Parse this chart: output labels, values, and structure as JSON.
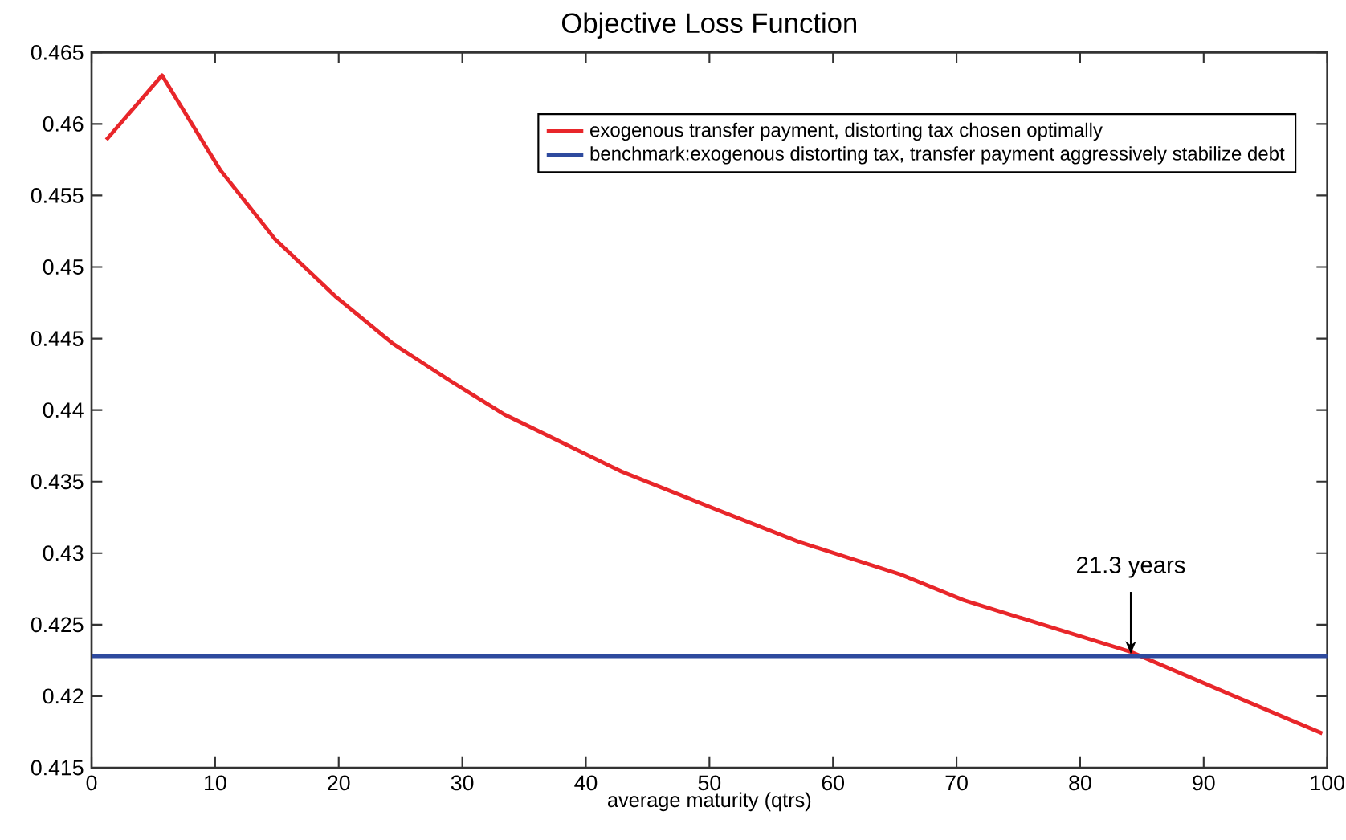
{
  "chart_data": {
    "type": "line",
    "title": "Objective Loss Function",
    "xlabel": "average maturity (qtrs)",
    "xlim": [
      0,
      100
    ],
    "xticks": [
      0,
      10,
      20,
      30,
      40,
      50,
      60,
      70,
      80,
      90,
      100
    ],
    "ylim": [
      0.415,
      0.465
    ],
    "yticks": [
      0.415,
      0.42,
      0.425,
      0.43,
      0.435,
      0.44,
      0.445,
      0.45,
      0.455,
      0.46,
      0.465
    ],
    "legend": "top right",
    "grid": false,
    "series": [
      {
        "name": "exogenous transfer payment, distorting tax chosen optimally",
        "color": "#e8262a",
        "x": [
          1.2,
          5.7,
          10.4,
          14.8,
          19.8,
          24.3,
          29.1,
          33.4,
          42.9,
          50.7,
          57.2,
          65.5,
          70.6,
          84.1,
          91.4,
          99.6
        ],
        "values": [
          0.4589,
          0.4634,
          0.4568,
          0.452,
          0.4479,
          0.4447,
          0.442,
          0.4397,
          0.4357,
          0.433,
          0.4308,
          0.4285,
          0.4267,
          0.4231,
          0.4204,
          0.4174
        ]
      },
      {
        "name": "benchmark:exogenous distorting tax, transfer payment aggressively stabilize debt",
        "color": "#2e4a9e",
        "x": [
          0,
          100
        ],
        "values": [
          0.4228,
          0.4228
        ]
      }
    ],
    "annotations": [
      {
        "text": "21.3 years",
        "x": 84.1,
        "y": 0.4228
      }
    ]
  }
}
